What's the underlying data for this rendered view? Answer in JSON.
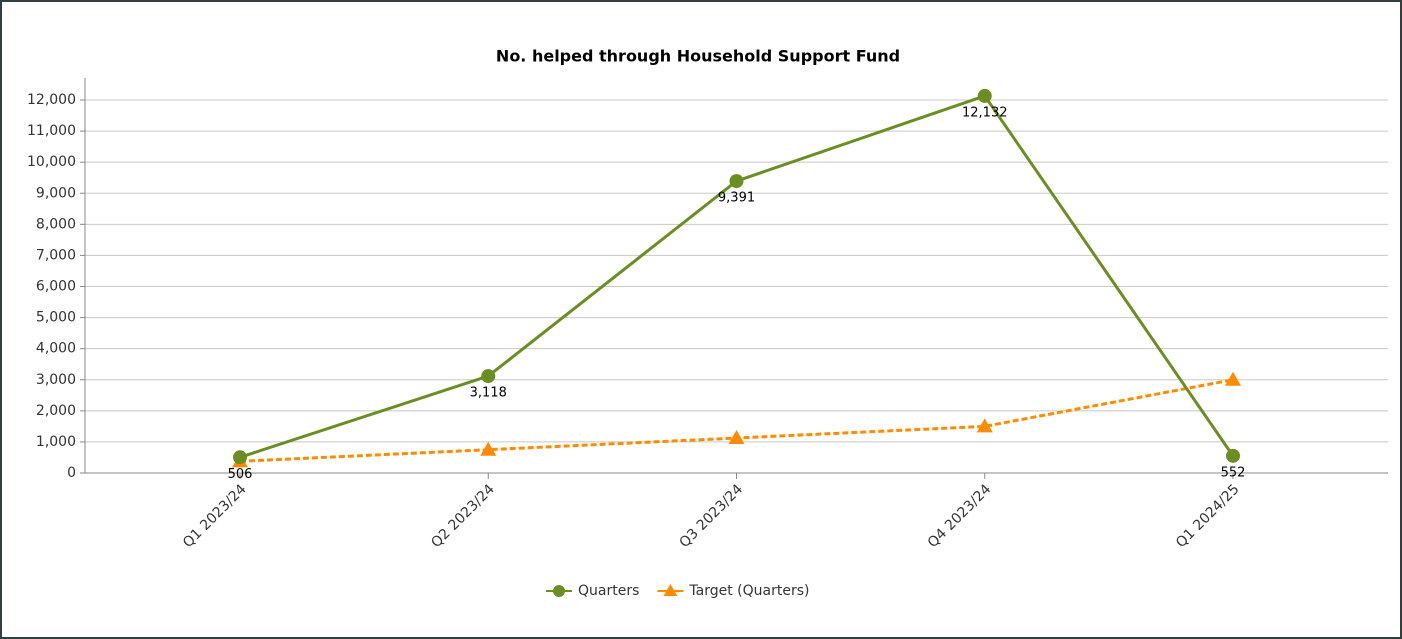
{
  "chart_data": {
    "type": "line",
    "title": "No. helped through Household Support Fund",
    "categories": [
      "Q1 2023/24",
      "Q2 2023/24",
      "Q3 2023/24",
      "Q4 2023/24",
      "Q1 2024/25"
    ],
    "series": [
      {
        "name": "Quarters",
        "color": "#6b8e23",
        "marker": "circle",
        "dashed": false,
        "values": [
          506,
          3118,
          9391,
          12132,
          552
        ],
        "value_labels": [
          "506",
          "3,118",
          "9,391",
          "12,132",
          "552"
        ]
      },
      {
        "name": "Target (Quarters)",
        "color": "#ff8c00",
        "marker": "triangle",
        "dashed": true,
        "values": [
          375,
          750,
          1125,
          1500,
          3000
        ]
      }
    ],
    "ylim": [
      0,
      12000
    ],
    "yticks": [
      0,
      {
        "value": 1000,
        "label": "1,000"
      },
      {
        "value": 2000,
        "label": "2,000"
      },
      {
        "value": 3000,
        "label": "3,000"
      },
      {
        "value": 4000,
        "label": "4,000"
      },
      {
        "value": 5000,
        "label": "5,000"
      },
      {
        "value": 6000,
        "label": "6,000"
      },
      {
        "value": 7000,
        "label": "7,000"
      },
      {
        "value": 8000,
        "label": "8,000"
      },
      {
        "value": 9000,
        "label": "9,000"
      },
      {
        "value": 10000,
        "label": "10,000"
      },
      {
        "value": 11000,
        "label": "11,000"
      },
      {
        "value": 12000,
        "label": "12,000"
      }
    ],
    "grid": true,
    "legend": "bottom"
  }
}
